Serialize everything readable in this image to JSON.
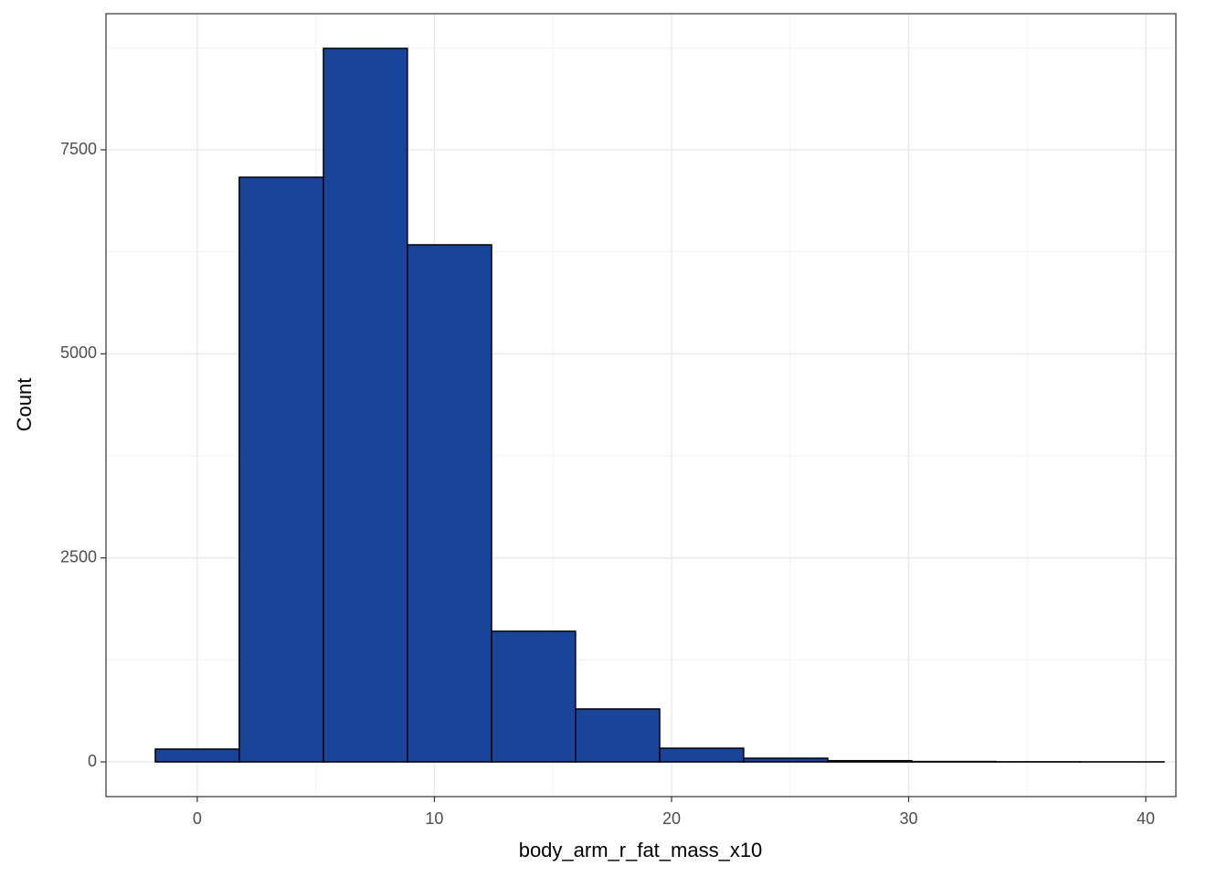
{
  "chart_data": {
    "type": "histogram",
    "x_label": "body_arm_r_fat_mass_x10",
    "y_label": "Count",
    "bins": [
      -1.77,
      1.77,
      5.32,
      8.86,
      12.41,
      15.95,
      19.5,
      23.04,
      26.59,
      30.13,
      33.68,
      37.22,
      40.77
    ],
    "values": [
      157,
      7164,
      8743,
      6336,
      1601,
      649,
      168,
      45,
      15,
      5,
      2,
      1
    ],
    "color": "#18449a",
    "edgecolor": "#000000",
    "xlim": [
      -3.85,
      41.27
    ],
    "ylim": [
      -425,
      9168
    ],
    "xticks": [
      0,
      10,
      20,
      30,
      40
    ],
    "yticks": [
      0,
      2500,
      5000,
      7500
    ],
    "xminor": [
      5,
      15,
      25,
      35
    ],
    "yminor": [
      1250,
      3750,
      6250,
      8750
    ],
    "grid": true
  }
}
